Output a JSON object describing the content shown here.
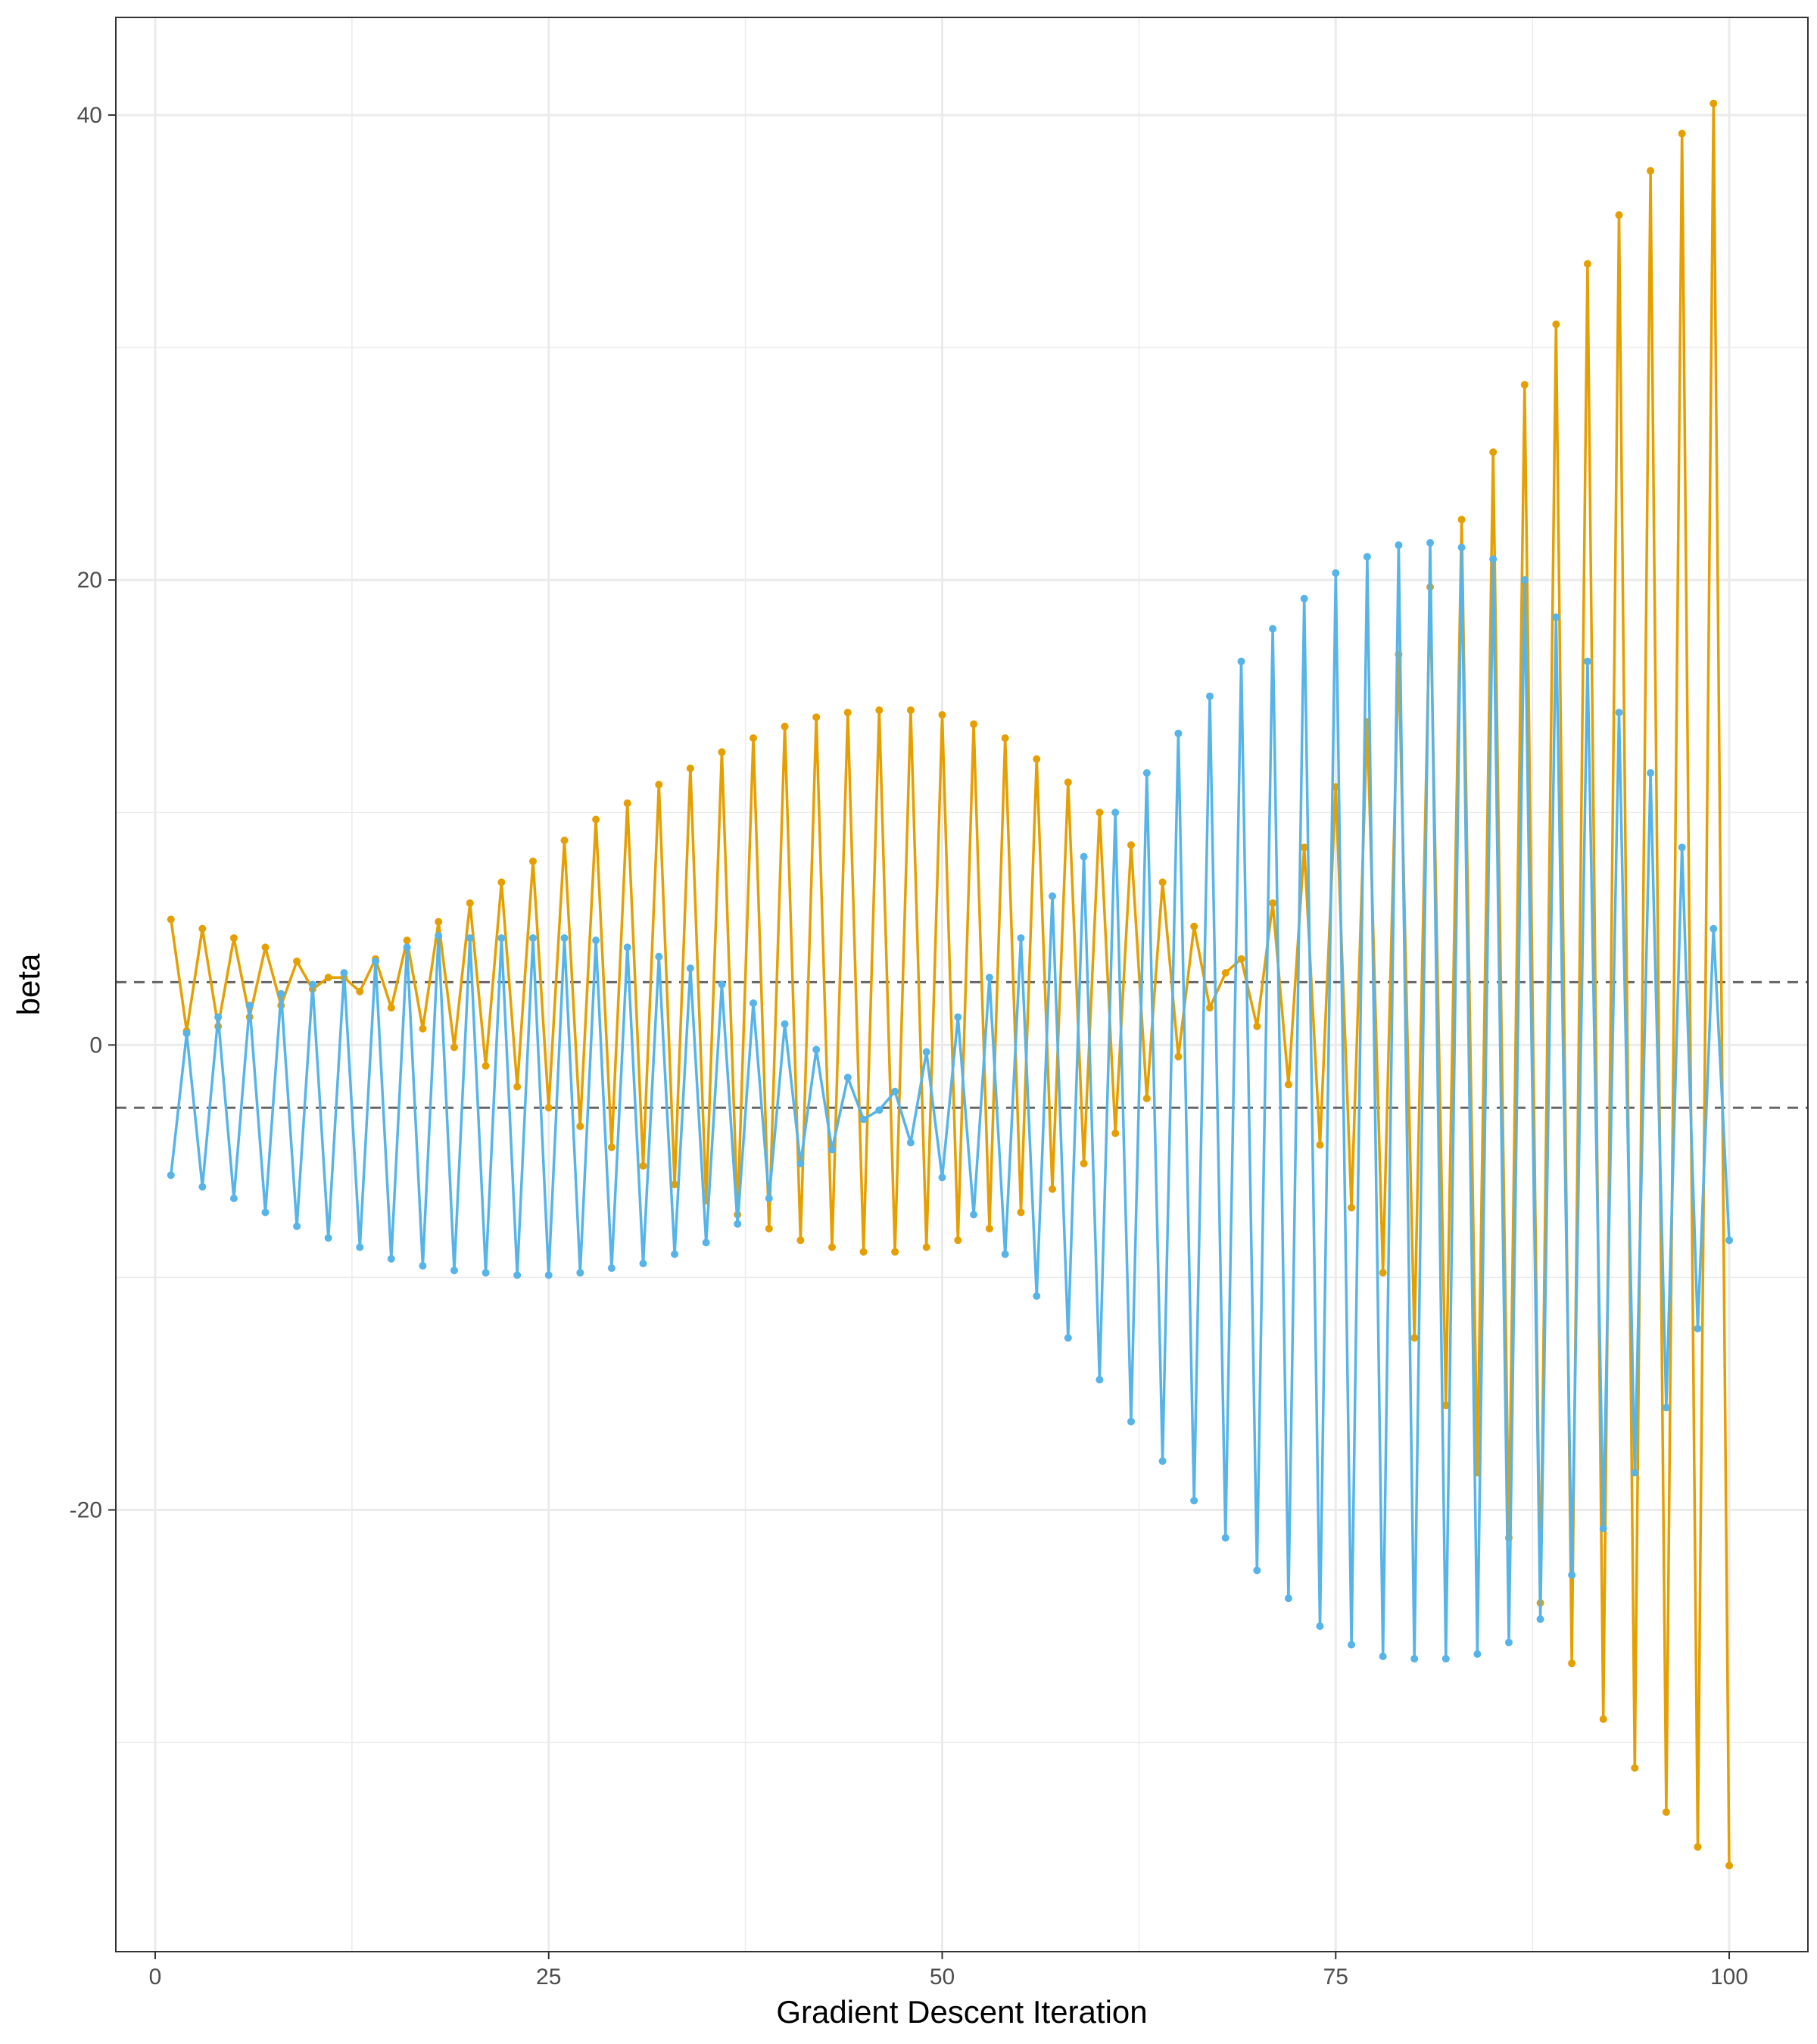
{
  "chart_data": {
    "type": "line",
    "xlabel": "Gradient Descent Iteration",
    "ylabel": "beta",
    "xlim": [
      -2.5,
      105
    ],
    "ylim": [
      -39,
      44.2
    ],
    "x_ticks": [
      0,
      25,
      50,
      75,
      100
    ],
    "x_tick_labels": [
      "0",
      "25",
      "50",
      "75",
      "100"
    ],
    "y_ticks": [
      -20,
      0,
      20,
      40
    ],
    "y_tick_labels": [
      "-20",
      "0",
      "20",
      "40"
    ],
    "x_minor_grid": [
      12.5,
      37.5,
      62.5,
      87.5
    ],
    "y_minor_grid": [
      -30,
      -10,
      10,
      30
    ],
    "grid": true,
    "legend": "none",
    "reference_lines": [
      2.7,
      -2.7
    ],
    "reference_line_style": "dashed",
    "colors": {
      "series_1": "#E69F00",
      "series_2": "#56B4E9",
      "reference": "#666666",
      "grid": "#ebebeb",
      "panel_border": "#333333"
    },
    "series": [
      {
        "color": "#E69F00",
        "x": [
          1,
          2,
          3,
          4,
          5,
          6,
          7,
          8,
          9,
          10,
          11,
          12,
          13,
          14,
          15,
          16,
          17,
          18,
          19,
          20,
          21,
          22,
          23,
          24,
          25,
          26,
          27,
          28,
          29,
          30,
          31,
          32,
          33,
          34,
          35,
          36,
          37,
          38,
          39,
          40,
          41,
          42,
          43,
          44,
          45,
          46,
          47,
          48,
          49,
          50,
          51,
          52,
          53,
          54,
          55,
          56,
          57,
          58,
          59,
          60,
          61,
          62,
          63,
          64,
          65,
          66,
          67,
          68,
          69,
          70,
          71,
          72,
          73,
          74,
          75,
          76,
          77,
          78,
          79,
          80,
          81,
          82,
          83,
          84,
          85,
          86,
          87,
          88,
          89,
          90,
          91,
          92,
          93,
          94,
          95,
          96,
          97,
          98,
          99,
          100
        ],
        "values": [
          5.4,
          0.6,
          5.0,
          0.8,
          4.6,
          1.2,
          4.2,
          1.7,
          3.6,
          2.4,
          2.9,
          2.9,
          2.3,
          3.7,
          1.6,
          4.5,
          0.7,
          5.3,
          -0.1,
          6.1,
          -0.9,
          7.0,
          -1.8,
          7.9,
          -2.7,
          8.8,
          -3.5,
          9.7,
          -4.4,
          10.4,
          -5.2,
          11.2,
          -6.0,
          11.9,
          -6.7,
          12.6,
          -7.3,
          13.2,
          -7.9,
          13.7,
          -8.4,
          14.1,
          -8.7,
          14.3,
          -8.9,
          14.4,
          -8.9,
          14.4,
          -8.7,
          14.2,
          -8.4,
          13.8,
          -7.9,
          13.2,
          -7.2,
          12.3,
          -6.2,
          11.3,
          -5.1,
          10.0,
          -3.8,
          8.6,
          -2.3,
          7.0,
          -0.5,
          5.1,
          1.6,
          3.1,
          3.7,
          0.8,
          6.1,
          -1.7,
          8.5,
          -4.3,
          11.1,
          -7.0,
          13.9,
          -9.8,
          16.8,
          -12.6,
          19.7,
          -15.5,
          22.6,
          -18.4,
          25.5,
          -21.2,
          28.4,
          -24.0,
          31.0,
          -26.6,
          33.6,
          -29.0,
          35.7,
          -31.1,
          37.6,
          -33.0,
          39.2,
          -34.5,
          40.5,
          -35.3
        ]
      },
      {
        "color": "#56B4E9",
        "x": [
          1,
          2,
          3,
          4,
          5,
          6,
          7,
          8,
          9,
          10,
          11,
          12,
          13,
          14,
          15,
          16,
          17,
          18,
          19,
          20,
          21,
          22,
          23,
          24,
          25,
          26,
          27,
          28,
          29,
          30,
          31,
          32,
          33,
          34,
          35,
          36,
          37,
          38,
          39,
          40,
          41,
          42,
          43,
          44,
          45,
          46,
          47,
          48,
          49,
          50,
          51,
          52,
          53,
          54,
          55,
          56,
          57,
          58,
          59,
          60,
          61,
          62,
          63,
          64,
          65,
          66,
          67,
          68,
          69,
          70,
          71,
          72,
          73,
          74,
          75,
          76,
          77,
          78,
          79,
          80,
          81,
          82,
          83,
          84,
          85,
          86,
          87,
          88,
          89,
          90,
          91,
          92,
          93,
          94,
          95,
          96,
          97,
          98,
          99,
          100
        ],
        "values": [
          -5.6,
          0.5,
          -6.1,
          1.2,
          -6.6,
          1.7,
          -7.2,
          2.2,
          -7.8,
          2.6,
          -8.3,
          3.1,
          -8.7,
          3.6,
          -9.2,
          4.2,
          -9.5,
          4.7,
          -9.7,
          4.6,
          -9.8,
          4.6,
          -9.9,
          4.6,
          -9.9,
          4.6,
          -9.8,
          4.5,
          -9.6,
          4.2,
          -9.4,
          3.8,
          -9.0,
          3.3,
          -8.5,
          2.6,
          -7.7,
          1.8,
          -6.6,
          0.9,
          -5.1,
          -0.2,
          -4.5,
          -1.4,
          -3.2,
          -2.8,
          -2.0,
          -4.2,
          -0.3,
          -5.7,
          1.2,
          -7.3,
          2.9,
          -9.0,
          4.6,
          -10.8,
          6.4,
          -12.6,
          8.1,
          -14.4,
          10.0,
          -16.2,
          11.7,
          -17.9,
          13.4,
          -19.6,
          15.0,
          -21.2,
          16.5,
          -22.6,
          17.9,
          -23.8,
          19.2,
          -25.0,
          20.3,
          -25.8,
          21.0,
          -26.3,
          21.5,
          -26.4,
          21.6,
          -26.4,
          21.4,
          -26.2,
          20.9,
          -25.7,
          20.0,
          -24.7,
          18.4,
          -22.8,
          16.5,
          -20.8,
          14.3,
          -18.4,
          11.7,
          -15.6,
          8.5,
          -12.2,
          5.0,
          -8.4
        ]
      }
    ]
  }
}
